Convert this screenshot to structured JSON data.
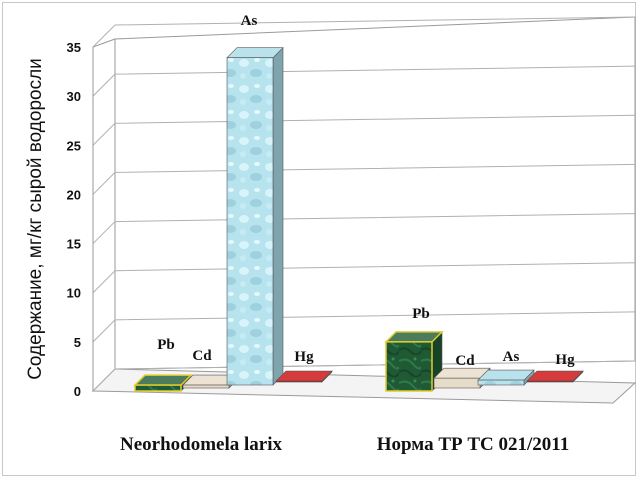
{
  "chart_data": {
    "type": "bar",
    "style": "3d-clustered",
    "ylabel": "Содержание, мг/кг сырой водоросли",
    "ylim": [
      0,
      35
    ],
    "yticks": [
      0,
      5,
      10,
      15,
      20,
      25,
      30,
      35
    ],
    "grid": true,
    "categories": [
      "Neorhodomela larix",
      "Норма ТР ТС 021/2011"
    ],
    "series": [
      {
        "name": "Pb",
        "color": "#1f5a34",
        "values": [
          0.6,
          5.0
        ]
      },
      {
        "name": "Cd",
        "color": "#e7dcc8",
        "values": [
          0.3,
          1.0
        ]
      },
      {
        "name": "As",
        "color": "#a8dbe8",
        "values": [
          33.3,
          0.5
        ]
      },
      {
        "name": "Hg",
        "color": "#cc0a0a",
        "values": [
          0.1,
          0.1
        ]
      }
    ]
  }
}
